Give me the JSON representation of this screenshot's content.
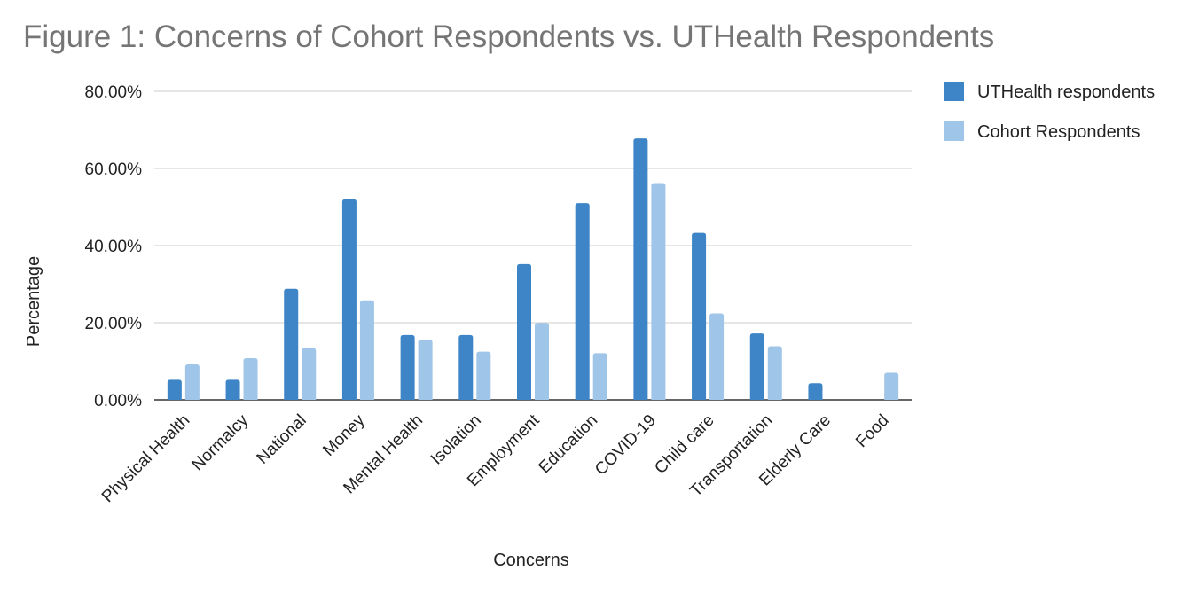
{
  "chart_data": {
    "type": "bar",
    "title": "Figure 1: Concerns of Cohort Respondents vs. UTHealth Respondents",
    "xlabel": "Concerns",
    "ylabel": "Percentage",
    "ylim": [
      0,
      80
    ],
    "yticks": [
      "0.00%",
      "20.00%",
      "40.00%",
      "60.00%",
      "80.00%"
    ],
    "ytick_values": [
      0,
      20,
      40,
      60,
      80
    ],
    "grid": true,
    "legend_position": "right",
    "categories": [
      "Physical Health",
      "Normalcy",
      "National",
      "Money",
      "Mental Health",
      "Isolation",
      "Employment",
      "Education",
      "COVID-19",
      "Child care",
      "Transportation",
      "Elderly Care",
      "Food"
    ],
    "series": [
      {
        "name": "UTHealth respondents",
        "color": "#3d85c6",
        "values": [
          5.2,
          5.2,
          28.8,
          52.0,
          16.8,
          16.8,
          35.2,
          51.0,
          67.8,
          43.3,
          17.2,
          4.3,
          0.0
        ]
      },
      {
        "name": "Cohort Respondents",
        "color": "#9fc5e8",
        "values": [
          9.2,
          10.8,
          13.4,
          25.8,
          15.6,
          12.5,
          19.9,
          12.1,
          56.2,
          22.4,
          13.9,
          0.0,
          7.0
        ]
      }
    ]
  }
}
